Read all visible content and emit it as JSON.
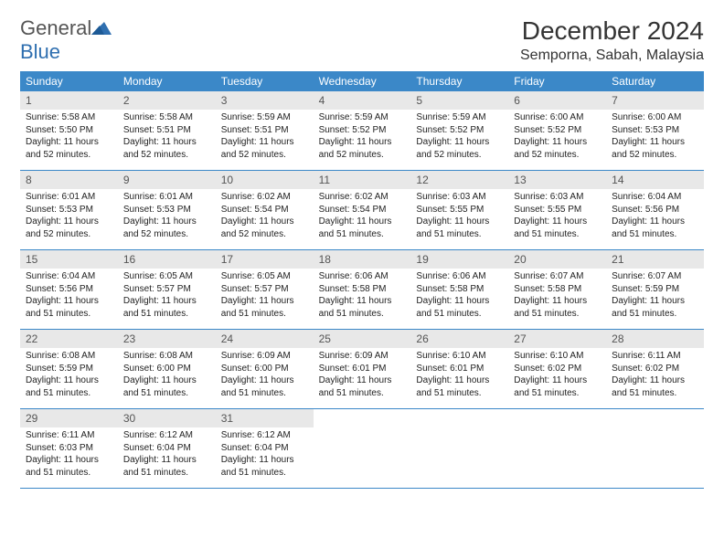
{
  "logo": {
    "text1": "General",
    "text2": "Blue"
  },
  "title": "December 2024",
  "location": "Semporna, Sabah, Malaysia",
  "colors": {
    "header_bg": "#3b88c8",
    "header_text": "#ffffff",
    "daynum_bg": "#e8e8e8",
    "daynum_text": "#555555",
    "body_text": "#222222",
    "logo_gray": "#555555",
    "logo_blue": "#2f6fb0",
    "border": "#3b88c8"
  },
  "weekdays": [
    "Sunday",
    "Monday",
    "Tuesday",
    "Wednesday",
    "Thursday",
    "Friday",
    "Saturday"
  ],
  "weeks": [
    [
      {
        "num": "1",
        "sunrise": "Sunrise: 5:58 AM",
        "sunset": "Sunset: 5:50 PM",
        "daylight": "Daylight: 11 hours and 52 minutes."
      },
      {
        "num": "2",
        "sunrise": "Sunrise: 5:58 AM",
        "sunset": "Sunset: 5:51 PM",
        "daylight": "Daylight: 11 hours and 52 minutes."
      },
      {
        "num": "3",
        "sunrise": "Sunrise: 5:59 AM",
        "sunset": "Sunset: 5:51 PM",
        "daylight": "Daylight: 11 hours and 52 minutes."
      },
      {
        "num": "4",
        "sunrise": "Sunrise: 5:59 AM",
        "sunset": "Sunset: 5:52 PM",
        "daylight": "Daylight: 11 hours and 52 minutes."
      },
      {
        "num": "5",
        "sunrise": "Sunrise: 5:59 AM",
        "sunset": "Sunset: 5:52 PM",
        "daylight": "Daylight: 11 hours and 52 minutes."
      },
      {
        "num": "6",
        "sunrise": "Sunrise: 6:00 AM",
        "sunset": "Sunset: 5:52 PM",
        "daylight": "Daylight: 11 hours and 52 minutes."
      },
      {
        "num": "7",
        "sunrise": "Sunrise: 6:00 AM",
        "sunset": "Sunset: 5:53 PM",
        "daylight": "Daylight: 11 hours and 52 minutes."
      }
    ],
    [
      {
        "num": "8",
        "sunrise": "Sunrise: 6:01 AM",
        "sunset": "Sunset: 5:53 PM",
        "daylight": "Daylight: 11 hours and 52 minutes."
      },
      {
        "num": "9",
        "sunrise": "Sunrise: 6:01 AM",
        "sunset": "Sunset: 5:53 PM",
        "daylight": "Daylight: 11 hours and 52 minutes."
      },
      {
        "num": "10",
        "sunrise": "Sunrise: 6:02 AM",
        "sunset": "Sunset: 5:54 PM",
        "daylight": "Daylight: 11 hours and 52 minutes."
      },
      {
        "num": "11",
        "sunrise": "Sunrise: 6:02 AM",
        "sunset": "Sunset: 5:54 PM",
        "daylight": "Daylight: 11 hours and 51 minutes."
      },
      {
        "num": "12",
        "sunrise": "Sunrise: 6:03 AM",
        "sunset": "Sunset: 5:55 PM",
        "daylight": "Daylight: 11 hours and 51 minutes."
      },
      {
        "num": "13",
        "sunrise": "Sunrise: 6:03 AM",
        "sunset": "Sunset: 5:55 PM",
        "daylight": "Daylight: 11 hours and 51 minutes."
      },
      {
        "num": "14",
        "sunrise": "Sunrise: 6:04 AM",
        "sunset": "Sunset: 5:56 PM",
        "daylight": "Daylight: 11 hours and 51 minutes."
      }
    ],
    [
      {
        "num": "15",
        "sunrise": "Sunrise: 6:04 AM",
        "sunset": "Sunset: 5:56 PM",
        "daylight": "Daylight: 11 hours and 51 minutes."
      },
      {
        "num": "16",
        "sunrise": "Sunrise: 6:05 AM",
        "sunset": "Sunset: 5:57 PM",
        "daylight": "Daylight: 11 hours and 51 minutes."
      },
      {
        "num": "17",
        "sunrise": "Sunrise: 6:05 AM",
        "sunset": "Sunset: 5:57 PM",
        "daylight": "Daylight: 11 hours and 51 minutes."
      },
      {
        "num": "18",
        "sunrise": "Sunrise: 6:06 AM",
        "sunset": "Sunset: 5:58 PM",
        "daylight": "Daylight: 11 hours and 51 minutes."
      },
      {
        "num": "19",
        "sunrise": "Sunrise: 6:06 AM",
        "sunset": "Sunset: 5:58 PM",
        "daylight": "Daylight: 11 hours and 51 minutes."
      },
      {
        "num": "20",
        "sunrise": "Sunrise: 6:07 AM",
        "sunset": "Sunset: 5:58 PM",
        "daylight": "Daylight: 11 hours and 51 minutes."
      },
      {
        "num": "21",
        "sunrise": "Sunrise: 6:07 AM",
        "sunset": "Sunset: 5:59 PM",
        "daylight": "Daylight: 11 hours and 51 minutes."
      }
    ],
    [
      {
        "num": "22",
        "sunrise": "Sunrise: 6:08 AM",
        "sunset": "Sunset: 5:59 PM",
        "daylight": "Daylight: 11 hours and 51 minutes."
      },
      {
        "num": "23",
        "sunrise": "Sunrise: 6:08 AM",
        "sunset": "Sunset: 6:00 PM",
        "daylight": "Daylight: 11 hours and 51 minutes."
      },
      {
        "num": "24",
        "sunrise": "Sunrise: 6:09 AM",
        "sunset": "Sunset: 6:00 PM",
        "daylight": "Daylight: 11 hours and 51 minutes."
      },
      {
        "num": "25",
        "sunrise": "Sunrise: 6:09 AM",
        "sunset": "Sunset: 6:01 PM",
        "daylight": "Daylight: 11 hours and 51 minutes."
      },
      {
        "num": "26",
        "sunrise": "Sunrise: 6:10 AM",
        "sunset": "Sunset: 6:01 PM",
        "daylight": "Daylight: 11 hours and 51 minutes."
      },
      {
        "num": "27",
        "sunrise": "Sunrise: 6:10 AM",
        "sunset": "Sunset: 6:02 PM",
        "daylight": "Daylight: 11 hours and 51 minutes."
      },
      {
        "num": "28",
        "sunrise": "Sunrise: 6:11 AM",
        "sunset": "Sunset: 6:02 PM",
        "daylight": "Daylight: 11 hours and 51 minutes."
      }
    ],
    [
      {
        "num": "29",
        "sunrise": "Sunrise: 6:11 AM",
        "sunset": "Sunset: 6:03 PM",
        "daylight": "Daylight: 11 hours and 51 minutes."
      },
      {
        "num": "30",
        "sunrise": "Sunrise: 6:12 AM",
        "sunset": "Sunset: 6:04 PM",
        "daylight": "Daylight: 11 hours and 51 minutes."
      },
      {
        "num": "31",
        "sunrise": "Sunrise: 6:12 AM",
        "sunset": "Sunset: 6:04 PM",
        "daylight": "Daylight: 11 hours and 51 minutes."
      },
      null,
      null,
      null,
      null
    ]
  ]
}
